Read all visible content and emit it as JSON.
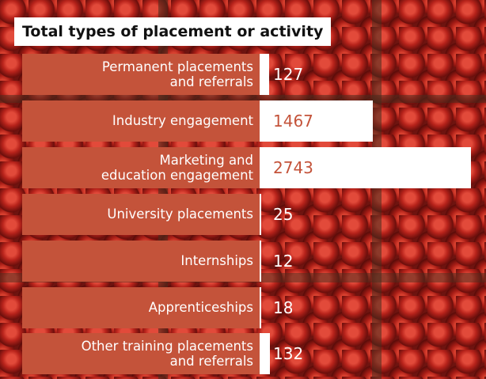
{
  "chart_data": {
    "type": "bar",
    "orientation": "horizontal",
    "title": "Total types of placement or activity",
    "categories": [
      "Permanent placements\nand referrals",
      "Industry engagement",
      "Marketing and\neducation engagement",
      "University placements",
      "Internships",
      "Apprenticeships",
      "Other training placements\nand referrals"
    ],
    "values": [
      127,
      1467,
      2743,
      25,
      12,
      18,
      132
    ],
    "color": "#ffffff",
    "label_color": "#c4533a"
  }
}
